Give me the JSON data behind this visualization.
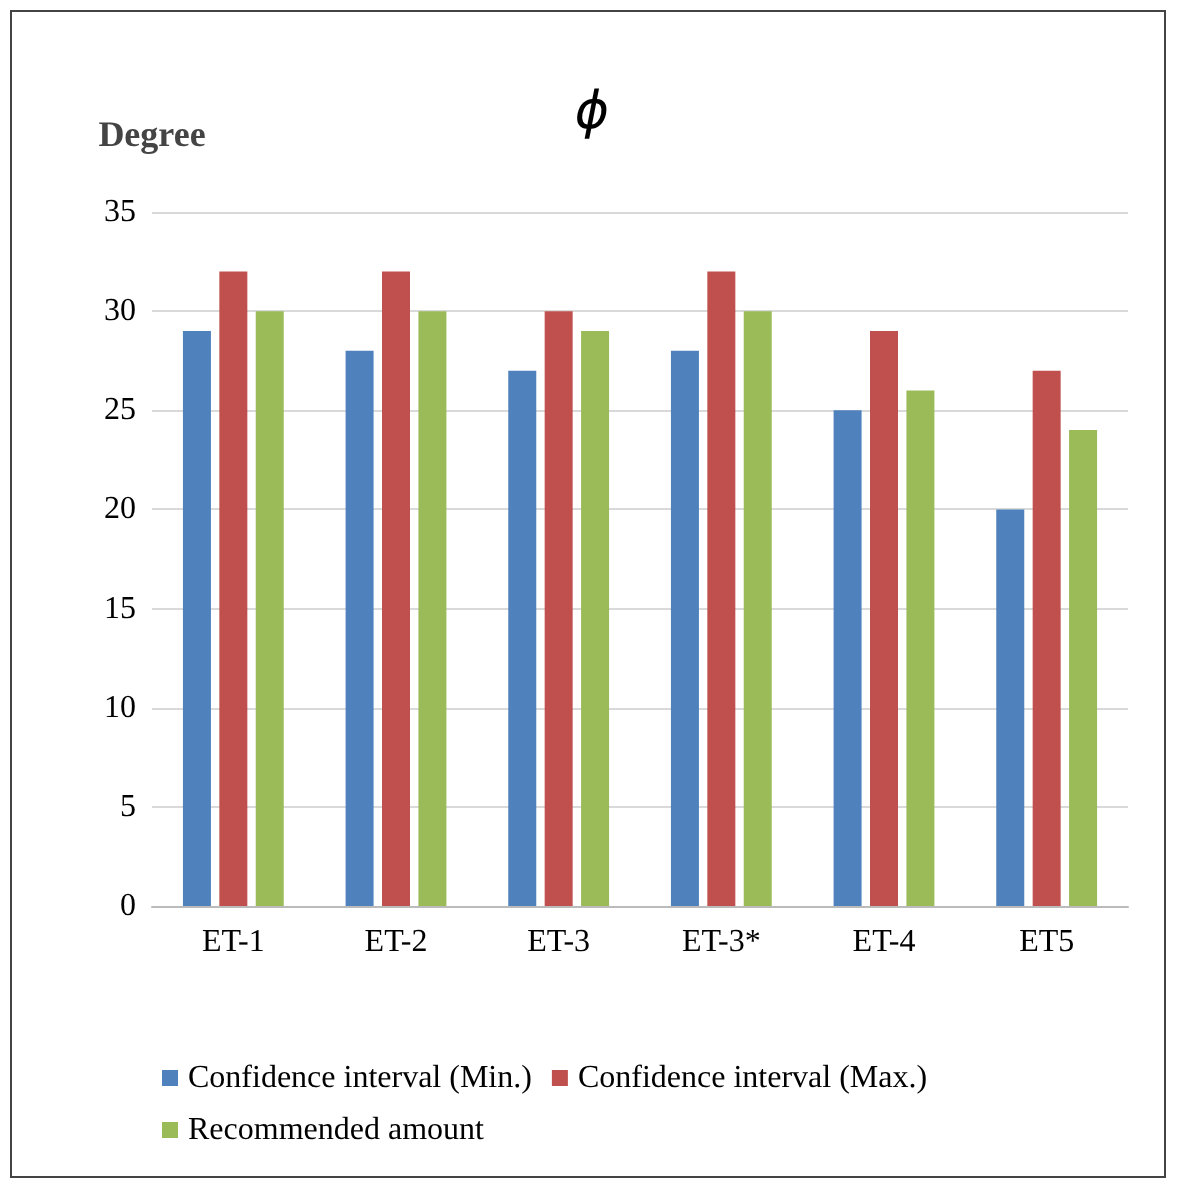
{
  "chart_data": {
    "type": "bar",
    "title": "ϕ",
    "ylabel": "Degree",
    "categories": [
      "ET-1",
      "ET-2",
      "ET-3",
      "ET-3*",
      "ET-4",
      "ET5"
    ],
    "series": [
      {
        "name": "Confidence interval (Min.)",
        "color": "#4f81bd",
        "values": [
          29,
          28,
          27,
          28,
          25,
          20
        ]
      },
      {
        "name": "Confidence interval (Max.)",
        "color": "#c0504d",
        "values": [
          32,
          32,
          30,
          32,
          29,
          27
        ]
      },
      {
        "name": "Recommended amount",
        "color": "#9bbb59",
        "values": [
          30,
          30,
          29,
          30,
          26,
          24
        ]
      }
    ],
    "ylim": [
      0,
      35
    ],
    "yticks": [
      0,
      5,
      10,
      15,
      20,
      25,
      30,
      35
    ],
    "grid": "y",
    "legend": "bottom"
  }
}
